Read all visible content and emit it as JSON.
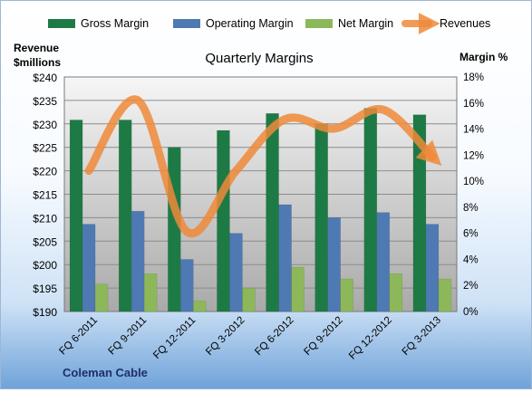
{
  "chart_data": {
    "type": "bar",
    "title": "Quarterly Margins",
    "company": "Coleman Cable",
    "left_axis_label_line1": "Revenue",
    "left_axis_label_line2": "$millions",
    "right_axis_label": "Margin %",
    "categories": [
      "FQ 6-2011",
      "FQ 9-2011",
      "FQ 12-2011",
      "FQ 3-2012",
      "FQ 6-2012",
      "FQ 9-2012",
      "FQ 12-2012",
      "FQ 3-2013"
    ],
    "left_ylim": [
      190,
      240
    ],
    "left_ticks": [
      "$190",
      "$195",
      "$200",
      "$205",
      "$210",
      "$215",
      "$220",
      "$225",
      "$230",
      "$235",
      "$240"
    ],
    "right_ylim": [
      0,
      18
    ],
    "right_ticks": [
      "0%",
      "2%",
      "4%",
      "6%",
      "8%",
      "10%",
      "12%",
      "14%",
      "16%",
      "18%"
    ],
    "legend_position": "top",
    "series": [
      {
        "name": "Gross Margin",
        "axis": "right",
        "kind": "bar",
        "color": "#1e7a45",
        "values": [
          14.7,
          14.7,
          12.6,
          13.9,
          15.2,
          14.4,
          15.6,
          15.1
        ]
      },
      {
        "name": "Operating Margin",
        "axis": "right",
        "kind": "bar",
        "color": "#4f79b3",
        "values": [
          6.7,
          7.7,
          4.0,
          6.0,
          8.2,
          7.2,
          7.6,
          6.7
        ]
      },
      {
        "name": "Net Margin",
        "axis": "right",
        "kind": "bar",
        "color": "#8db85a",
        "values": [
          2.1,
          2.9,
          0.8,
          1.8,
          3.4,
          2.5,
          2.9,
          2.5
        ]
      },
      {
        "name": "Revenues",
        "axis": "left",
        "kind": "line",
        "color": "#ee8a3a",
        "values": [
          220,
          235,
          207,
          220,
          231,
          229,
          233,
          223
        ]
      }
    ]
  }
}
